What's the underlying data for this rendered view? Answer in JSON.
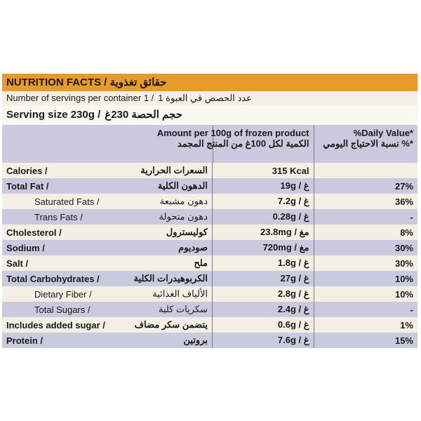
{
  "header": {
    "title": "NUTRITION FACTS / حقائق تغذوية"
  },
  "servings": {
    "en": "Number of servings per container 1 /",
    "ar": "عدد الحصص في العبوة 1"
  },
  "serving_size": {
    "en": "Serving size 230g /",
    "ar": "حجم الحصة 230غ"
  },
  "table": {
    "columns": {
      "amount_en": "Amount per 100g of frozen product",
      "amount_ar": "الكمية لكل 100غ من المنتج المجمد",
      "dv_en": "%Daily Value*",
      "dv_ar": "نسبة الاحتياج اليومي %*"
    },
    "rows": [
      {
        "en": "Calories /",
        "ar": "السعرات الحرارية",
        "amount": "315 Kcal",
        "dv": ""
      },
      {
        "en": "Total Fat /",
        "ar": "الدهون الكلية",
        "amount": "19g / غ",
        "dv": "27%"
      },
      {
        "en": "Saturated Fats /",
        "ar": "دهون مشبعة",
        "amount": "7.2g / غ",
        "dv": "36%"
      },
      {
        "en": "Trans Fats /",
        "ar": "دهون متحولة",
        "amount": "0.28g / غ",
        "dv": "-"
      },
      {
        "en": "Cholesterol /",
        "ar": "كوليسترول",
        "amount": "23.8mg / مغ",
        "dv": "8%"
      },
      {
        "en": "Sodium /",
        "ar": "صوديوم",
        "amount": "720mg / مغ",
        "dv": "30%"
      },
      {
        "en": "Salt /",
        "ar": "ملح",
        "amount": "1.8g / غ",
        "dv": "30%"
      },
      {
        "en": "Total Carbohydrates /",
        "ar": "الكربوهيدرات الكلية",
        "amount": "27g / غ",
        "dv": "10%"
      },
      {
        "en": "Dietary Fiber /",
        "ar": "الألياف الغذائية",
        "amount": "2.8g / غ",
        "dv": "10%"
      },
      {
        "en": "Total Sugars /",
        "ar": "سكريات كلية",
        "amount": "2.4g / غ",
        "dv": "-"
      },
      {
        "en": "Includes added sugar /",
        "ar": "يتضمن سكر مضاف",
        "amount": "0.6g / غ",
        "dv": "1%"
      },
      {
        "en": "Protein /",
        "ar": "بروتين",
        "amount": "7.6g / غ",
        "dv": "15%"
      }
    ]
  }
}
